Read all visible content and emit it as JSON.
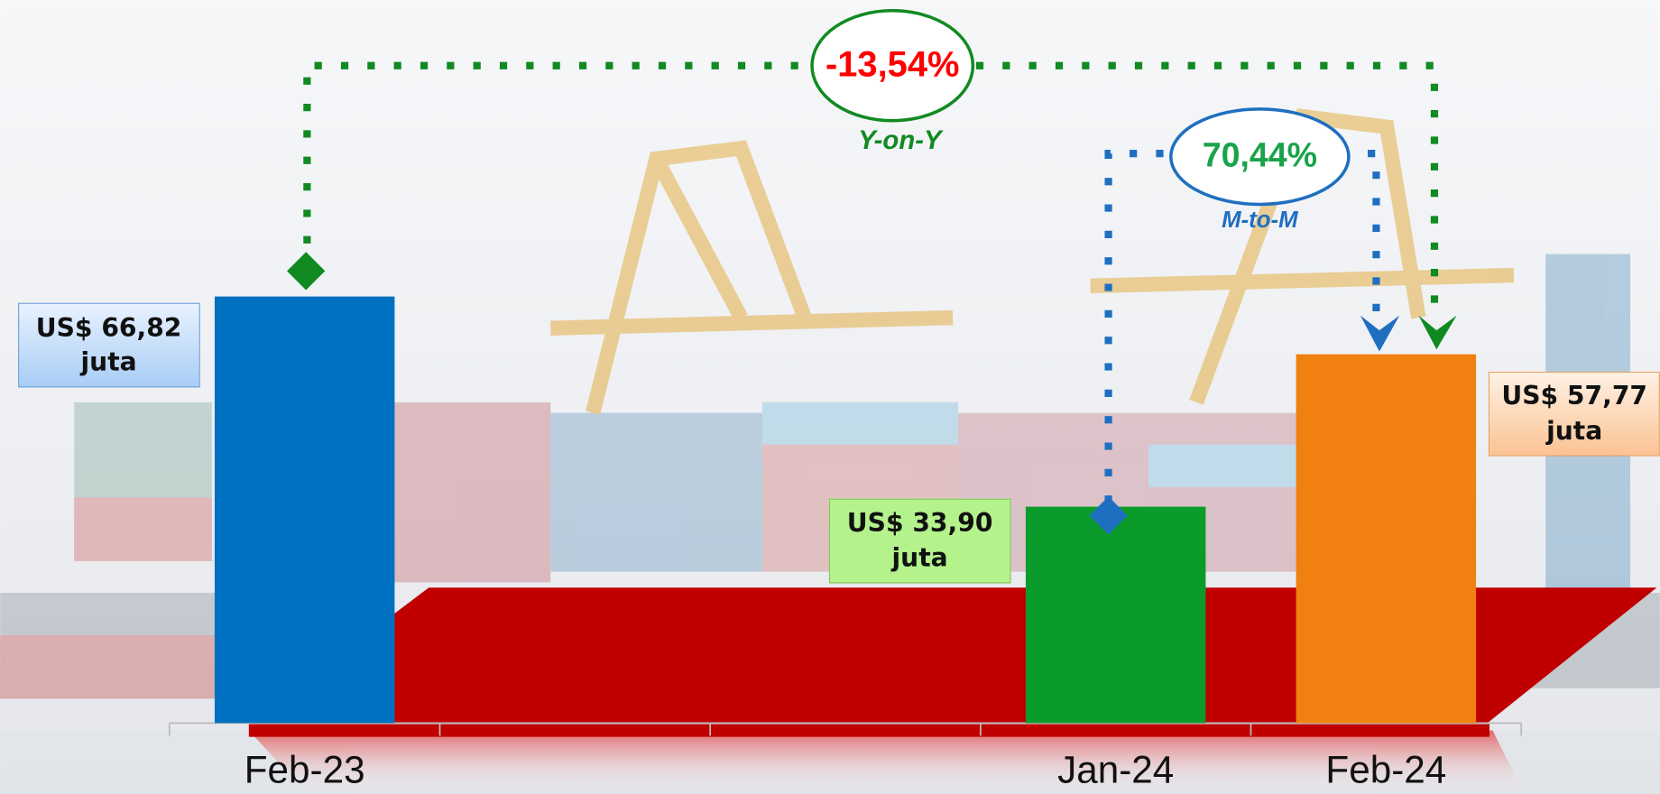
{
  "chart_data": {
    "type": "bar",
    "categories": [
      "Feb-23",
      null,
      null,
      "Jan-24",
      "Feb-24"
    ],
    "values": [
      66.82,
      null,
      null,
      33.9,
      57.77
    ],
    "value_labels": [
      "US$ 66,82 juta",
      null,
      null,
      "US$ 33,90 juta",
      "US$ 57,77 juta"
    ],
    "colors": [
      "#0070c0",
      null,
      null,
      "#0b9b2b",
      "#f08010"
    ],
    "ylim": [
      0,
      100
    ],
    "annotations": {
      "yoy": {
        "change": "-13,54%",
        "label": "Y-on-Y"
      },
      "mtm": {
        "change": "70,44%",
        "label": "M-to-M"
      }
    }
  }
}
